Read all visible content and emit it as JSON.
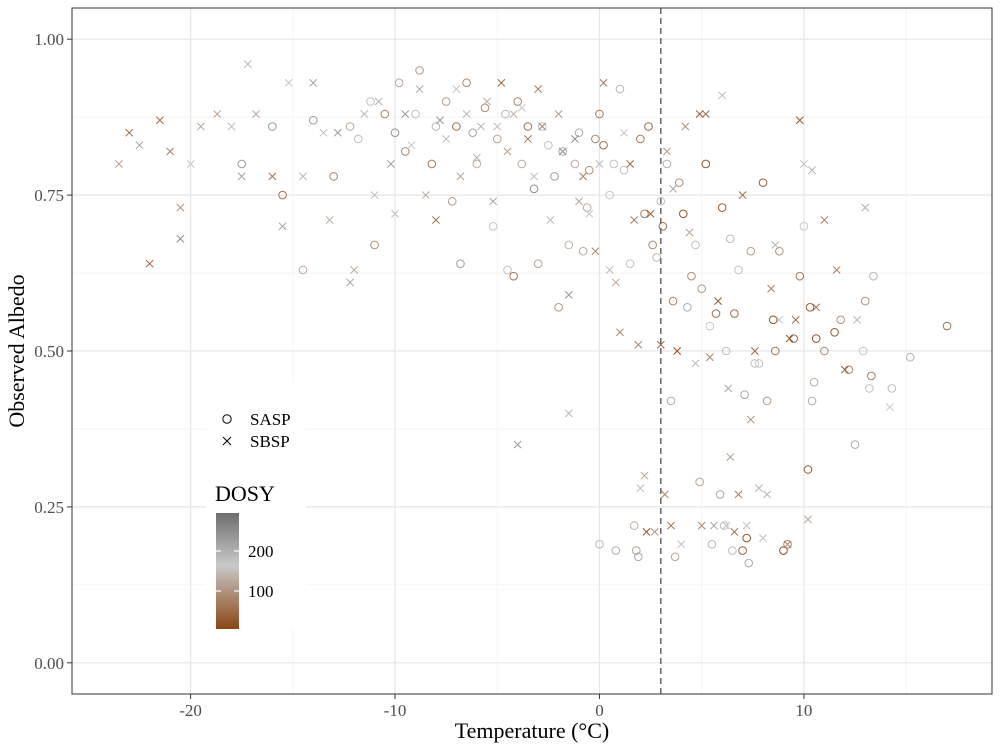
{
  "chart_data": {
    "type": "scatter",
    "title": "",
    "xlabel": "Temperature (°C)",
    "ylabel": "Observed Albedo",
    "xlim": [
      -25.8,
      19.2
    ],
    "ylim": [
      -0.05,
      1.05
    ],
    "x_ticks": [
      -20,
      -10,
      0,
      10
    ],
    "x_tick_labels": [
      "-20",
      "-10",
      "0",
      "10"
    ],
    "y_ticks": [
      0.0,
      0.25,
      0.5,
      0.75,
      1.0
    ],
    "y_tick_labels": [
      "0.00",
      "0.25",
      "0.50",
      "0.75",
      "1.00"
    ],
    "reference_line": {
      "x": 3,
      "style": "dashed",
      "color": "#666666"
    },
    "grid": true,
    "legend_placement": "inside-left",
    "shape_legend": {
      "entries": [
        {
          "label": "SASP",
          "marker": "circle"
        },
        {
          "label": "SBSP",
          "marker": "cross"
        }
      ]
    },
    "color_legend": {
      "title": "DOSY",
      "tick_labels": [
        "200",
        "100"
      ],
      "tick_values": [
        200,
        100
      ],
      "range": [
        30,
        300
      ],
      "gradient_colors": [
        "#8b4513",
        "#c9c9c9",
        "#6e6e6e"
      ]
    },
    "series": [
      {
        "name": "SASP",
        "marker": "circle",
        "points": [
          [
            -17.5,
            0.8
          ],
          [
            -16,
            0.86
          ],
          [
            -15.5,
            0.75
          ],
          [
            -14.5,
            0.63
          ],
          [
            -14,
            0.87
          ],
          [
            -13,
            0.78
          ],
          [
            -12.2,
            0.86
          ],
          [
            -11.8,
            0.84
          ],
          [
            -11.2,
            0.9
          ],
          [
            -11,
            0.67
          ],
          [
            -10.5,
            0.88
          ],
          [
            -10,
            0.85
          ],
          [
            -9.8,
            0.93
          ],
          [
            -9.5,
            0.82
          ],
          [
            -9,
            0.88
          ],
          [
            -8.8,
            0.95
          ],
          [
            -8.2,
            0.8
          ],
          [
            -8,
            0.86
          ],
          [
            -7.5,
            0.9
          ],
          [
            -7.2,
            0.74
          ],
          [
            -7,
            0.86
          ],
          [
            -6.8,
            0.64
          ],
          [
            -6.5,
            0.93
          ],
          [
            -6.2,
            0.85
          ],
          [
            -6,
            0.8
          ],
          [
            -5.6,
            0.89
          ],
          [
            -5.2,
            0.7
          ],
          [
            -5,
            0.84
          ],
          [
            -4.6,
            0.88
          ],
          [
            -4.5,
            0.63
          ],
          [
            -4.2,
            0.62
          ],
          [
            -4,
            0.9
          ],
          [
            -3.8,
            0.8
          ],
          [
            -3.5,
            0.86
          ],
          [
            -3.2,
            0.76
          ],
          [
            -3,
            0.64
          ],
          [
            -2.8,
            0.86
          ],
          [
            -2.5,
            0.83
          ],
          [
            -2.2,
            0.78
          ],
          [
            -2,
            0.57
          ],
          [
            -1.8,
            0.82
          ],
          [
            -1.5,
            0.67
          ],
          [
            -1.2,
            0.8
          ],
          [
            -1,
            0.85
          ],
          [
            -0.8,
            0.66
          ],
          [
            -0.6,
            0.73
          ],
          [
            -0.5,
            0.79
          ],
          [
            -0.2,
            0.84
          ],
          [
            0,
            0.19
          ],
          [
            0,
            0.88
          ],
          [
            0.2,
            0.83
          ],
          [
            0.5,
            0.75
          ],
          [
            0.7,
            0.8
          ],
          [
            0.8,
            0.18
          ],
          [
            1,
            0.92
          ],
          [
            1.2,
            0.79
          ],
          [
            1.5,
            0.64
          ],
          [
            1.7,
            0.22
          ],
          [
            1.8,
            0.18
          ],
          [
            1.9,
            0.17
          ],
          [
            2,
            0.84
          ],
          [
            2.2,
            0.72
          ],
          [
            2.4,
            0.86
          ],
          [
            2.6,
            0.67
          ],
          [
            2.8,
            0.65
          ],
          [
            3,
            0.74
          ],
          [
            3.1,
            0.7
          ],
          [
            3.3,
            0.8
          ],
          [
            3.5,
            0.42
          ],
          [
            3.6,
            0.58
          ],
          [
            3.7,
            0.17
          ],
          [
            3.9,
            0.77
          ],
          [
            4.1,
            0.72
          ],
          [
            4.3,
            0.57
          ],
          [
            4.5,
            0.62
          ],
          [
            4.7,
            0.67
          ],
          [
            4.9,
            0.29
          ],
          [
            5,
            0.6
          ],
          [
            5.2,
            0.8
          ],
          [
            5.4,
            0.54
          ],
          [
            5.5,
            0.19
          ],
          [
            5.7,
            0.56
          ],
          [
            5.9,
            0.27
          ],
          [
            6,
            0.73
          ],
          [
            6.1,
            0.22
          ],
          [
            6.2,
            0.5
          ],
          [
            6.4,
            0.68
          ],
          [
            6.5,
            0.18
          ],
          [
            6.6,
            0.56
          ],
          [
            6.8,
            0.63
          ],
          [
            7,
            0.18
          ],
          [
            7.1,
            0.43
          ],
          [
            7.2,
            0.2
          ],
          [
            7.3,
            0.16
          ],
          [
            7.4,
            0.66
          ],
          [
            7.6,
            0.48
          ],
          [
            7.8,
            0.48
          ],
          [
            8,
            0.77
          ],
          [
            8.2,
            0.42
          ],
          [
            8.5,
            0.55
          ],
          [
            8.6,
            0.5
          ],
          [
            8.8,
            0.66
          ],
          [
            9,
            0.18
          ],
          [
            9.2,
            0.19
          ],
          [
            9.5,
            0.52
          ],
          [
            9.8,
            0.62
          ],
          [
            10,
            0.7
          ],
          [
            10.2,
            0.31
          ],
          [
            10.3,
            0.57
          ],
          [
            10.4,
            0.42
          ],
          [
            10.5,
            0.45
          ],
          [
            10.6,
            0.52
          ],
          [
            11,
            0.5
          ],
          [
            11.5,
            0.53
          ],
          [
            11.8,
            0.55
          ],
          [
            12.2,
            0.47
          ],
          [
            12.5,
            0.35
          ],
          [
            12.9,
            0.5
          ],
          [
            13,
            0.58
          ],
          [
            13.2,
            0.44
          ],
          [
            13.3,
            0.46
          ],
          [
            13.4,
            0.62
          ],
          [
            14.3,
            0.44
          ],
          [
            15.2,
            0.49
          ],
          [
            17,
            0.54
          ]
        ]
      },
      {
        "name": "SBSP",
        "marker": "cross",
        "points": [
          [
            -23.5,
            0.8
          ],
          [
            -23,
            0.85
          ],
          [
            -22.5,
            0.83
          ],
          [
            -22,
            0.64
          ],
          [
            -21.5,
            0.87
          ],
          [
            -21,
            0.82
          ],
          [
            -20.5,
            0.73
          ],
          [
            -20.5,
            0.68
          ],
          [
            -20,
            0.8
          ],
          [
            -19.5,
            0.86
          ],
          [
            -18.7,
            0.88
          ],
          [
            -18,
            0.86
          ],
          [
            -17.5,
            0.78
          ],
          [
            -17.2,
            0.96
          ],
          [
            -16.8,
            0.88
          ],
          [
            -16,
            0.78
          ],
          [
            -15.5,
            0.7
          ],
          [
            -15.2,
            0.93
          ],
          [
            -14.5,
            0.78
          ],
          [
            -14,
            0.93
          ],
          [
            -13.5,
            0.85
          ],
          [
            -13.2,
            0.71
          ],
          [
            -12.8,
            0.85
          ],
          [
            -12.2,
            0.61
          ],
          [
            -12,
            0.63
          ],
          [
            -11.5,
            0.88
          ],
          [
            -11,
            0.75
          ],
          [
            -10.8,
            0.9
          ],
          [
            -10.2,
            0.8
          ],
          [
            -10,
            0.72
          ],
          [
            -9.5,
            0.88
          ],
          [
            -9.2,
            0.83
          ],
          [
            -8.8,
            0.92
          ],
          [
            -8.5,
            0.75
          ],
          [
            -8,
            0.71
          ],
          [
            -7.8,
            0.87
          ],
          [
            -7.5,
            0.84
          ],
          [
            -7,
            0.92
          ],
          [
            -6.8,
            0.78
          ],
          [
            -6.5,
            0.88
          ],
          [
            -6,
            0.81
          ],
          [
            -5.8,
            0.86
          ],
          [
            -5.5,
            0.9
          ],
          [
            -5.2,
            0.74
          ],
          [
            -5,
            0.86
          ],
          [
            -4.8,
            0.93
          ],
          [
            -4.5,
            0.82
          ],
          [
            -4.2,
            0.88
          ],
          [
            -4,
            0.35
          ],
          [
            -3.8,
            0.89
          ],
          [
            -3.5,
            0.84
          ],
          [
            -3.2,
            0.78
          ],
          [
            -3,
            0.92
          ],
          [
            -2.8,
            0.86
          ],
          [
            -2.4,
            0.71
          ],
          [
            -2,
            0.88
          ],
          [
            -1.8,
            0.82
          ],
          [
            -1.5,
            0.59
          ],
          [
            -1.5,
            0.4
          ],
          [
            -1.2,
            0.84
          ],
          [
            -1,
            0.74
          ],
          [
            -0.8,
            0.78
          ],
          [
            -0.5,
            0.72
          ],
          [
            -0.2,
            0.66
          ],
          [
            0,
            0.8
          ],
          [
            0.2,
            0.93
          ],
          [
            0.5,
            0.63
          ],
          [
            0.8,
            0.61
          ],
          [
            1,
            0.53
          ],
          [
            1.2,
            0.85
          ],
          [
            1.5,
            0.8
          ],
          [
            1.7,
            0.71
          ],
          [
            1.9,
            0.51
          ],
          [
            2,
            0.28
          ],
          [
            2.2,
            0.3
          ],
          [
            2.3,
            0.21
          ],
          [
            2.5,
            0.72
          ],
          [
            2.7,
            0.21
          ],
          [
            3,
            0.51
          ],
          [
            3.2,
            0.27
          ],
          [
            3.3,
            0.82
          ],
          [
            3.5,
            0.22
          ],
          [
            3.6,
            0.76
          ],
          [
            3.8,
            0.5
          ],
          [
            4,
            0.19
          ],
          [
            4.2,
            0.86
          ],
          [
            4.4,
            0.69
          ],
          [
            4.7,
            0.48
          ],
          [
            4.9,
            0.88
          ],
          [
            5,
            0.22
          ],
          [
            5.2,
            0.88
          ],
          [
            5.4,
            0.49
          ],
          [
            5.6,
            0.22
          ],
          [
            5.8,
            0.58
          ],
          [
            6,
            0.91
          ],
          [
            6.2,
            0.22
          ],
          [
            6.3,
            0.44
          ],
          [
            6.4,
            0.33
          ],
          [
            6.6,
            0.21
          ],
          [
            6.8,
            0.27
          ],
          [
            7,
            0.75
          ],
          [
            7.2,
            0.22
          ],
          [
            7.4,
            0.39
          ],
          [
            7.6,
            0.5
          ],
          [
            7.8,
            0.28
          ],
          [
            8,
            0.2
          ],
          [
            8.2,
            0.27
          ],
          [
            8.4,
            0.6
          ],
          [
            8.6,
            0.67
          ],
          [
            8.8,
            0.55
          ],
          [
            9.2,
            0.19
          ],
          [
            9.3,
            0.52
          ],
          [
            9.6,
            0.55
          ],
          [
            9.8,
            0.87
          ],
          [
            10,
            0.8
          ],
          [
            10.2,
            0.23
          ],
          [
            10.4,
            0.79
          ],
          [
            10.6,
            0.57
          ],
          [
            11,
            0.71
          ],
          [
            11.6,
            0.63
          ],
          [
            12,
            0.47
          ],
          [
            12.6,
            0.55
          ],
          [
            13,
            0.73
          ],
          [
            14.2,
            0.41
          ]
        ]
      }
    ]
  }
}
